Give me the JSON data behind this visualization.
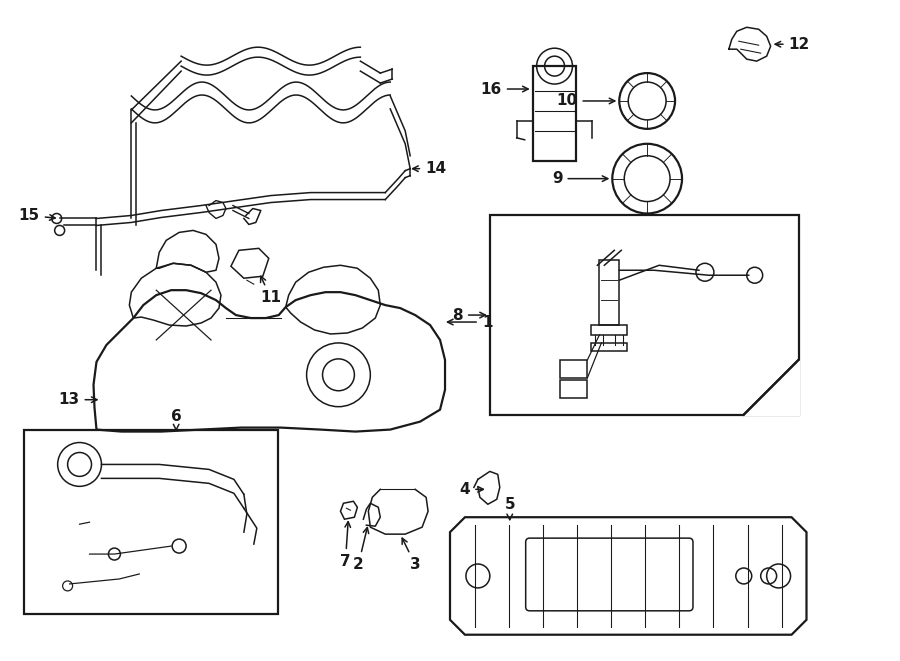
{
  "bg_color": "#ffffff",
  "lc": "#1a1a1a",
  "lw": 1.1,
  "lw2": 1.6,
  "fs": 11
}
